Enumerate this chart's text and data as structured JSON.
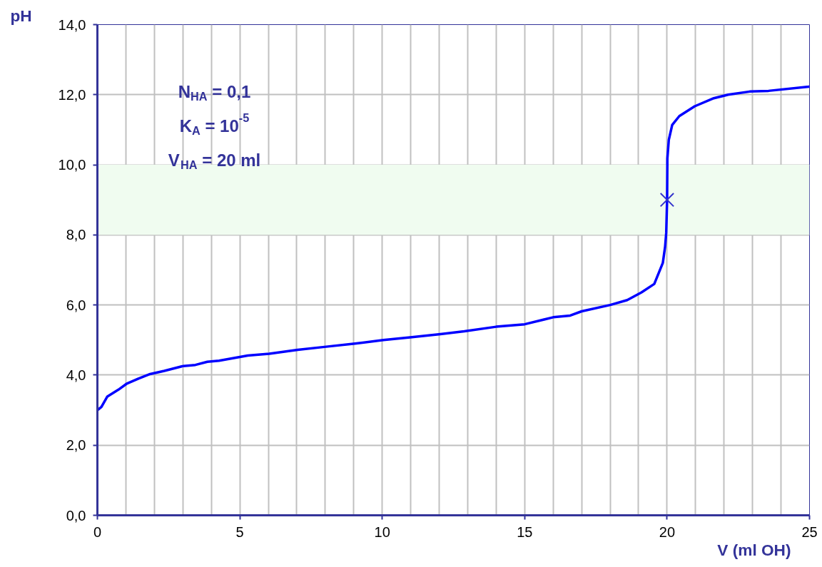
{
  "chart_data": {
    "type": "line",
    "xlabel": "V (ml OH)",
    "ylabel": "pH",
    "xlim": [
      0,
      25
    ],
    "ylim": [
      0,
      14
    ],
    "xticks": [
      0,
      {
        "value": 1,
        "label": null
      },
      {
        "value": 2,
        "label": null
      },
      {
        "value": 3,
        "label": null
      },
      {
        "value": 4,
        "label": null
      },
      5,
      {
        "value": 6,
        "label": null
      },
      {
        "value": 7,
        "label": null
      },
      {
        "value": 8,
        "label": null
      },
      {
        "value": 9,
        "label": null
      },
      10,
      {
        "value": 11,
        "label": null
      },
      {
        "value": 12,
        "label": null
      },
      {
        "value": 13,
        "label": null
      },
      {
        "value": 14,
        "label": null
      },
      15,
      {
        "value": 16,
        "label": null
      },
      {
        "value": 17,
        "label": null
      },
      {
        "value": 18,
        "label": null
      },
      {
        "value": 19,
        "label": null
      },
      20,
      {
        "value": 21,
        "label": null
      },
      {
        "value": 22,
        "label": null
      },
      {
        "value": 23,
        "label": null
      },
      {
        "value": 24,
        "label": null
      },
      25
    ],
    "yticks": [
      {
        "value": 0,
        "label": "0,0"
      },
      {
        "value": 2,
        "label": "2,0"
      },
      {
        "value": 4,
        "label": "4,0"
      },
      {
        "value": 6,
        "label": "6,0"
      },
      {
        "value": 8,
        "label": "8,0"
      },
      {
        "value": 10,
        "label": "10,0"
      },
      {
        "value": 12,
        "label": "12,0"
      },
      {
        "value": 14,
        "label": "14,0"
      }
    ],
    "grid": true,
    "line_style": "solid",
    "bands": [
      {
        "axis": "y",
        "from": 8,
        "to": 10,
        "color": "#f0fcf0"
      }
    ],
    "annotations": [
      "N$_{HA}$ = 0,1",
      "K$_{A}$ = 10$^{-5}$",
      "V$_{HA}$ = 20 ml"
    ],
    "series": [
      {
        "color": "#0000ff",
        "x": [
          0,
          0.14,
          0.35,
          0.73,
          1.02,
          1.44,
          1.85,
          2.35,
          3.02,
          3.44,
          3.86,
          4.27,
          5.28,
          6.03,
          7.03,
          8.03,
          9.04,
          10.04,
          11.04,
          12.04,
          12.88,
          14,
          15,
          16,
          16.6,
          17,
          18,
          18.6,
          19.1,
          19.55,
          19.85,
          19.93,
          19.97,
          20,
          20.01,
          20.06,
          20.18,
          20.43,
          20.97,
          21.64,
          22.14,
          22.9,
          23.56,
          24.98,
          25
        ],
        "values": [
          3.0,
          3.09,
          3.39,
          3.58,
          3.75,
          3.9,
          4.03,
          4.12,
          4.26,
          4.29,
          4.38,
          4.41,
          4.56,
          4.61,
          4.72,
          4.81,
          4.9,
          5.0,
          5.08,
          5.17,
          5.25,
          5.38,
          5.45,
          5.65,
          5.7,
          5.82,
          6.0,
          6.14,
          6.36,
          6.6,
          7.2,
          7.66,
          8.06,
          9.0,
          10.18,
          10.71,
          11.14,
          11.39,
          11.67,
          11.9,
          12.0,
          12.09,
          12.11,
          12.23,
          12.24
        ]
      },
      {
        "type": "scatter",
        "color": "#3333cc",
        "marker": "cross",
        "x": [
          20
        ],
        "values": [
          9
        ]
      }
    ]
  }
}
